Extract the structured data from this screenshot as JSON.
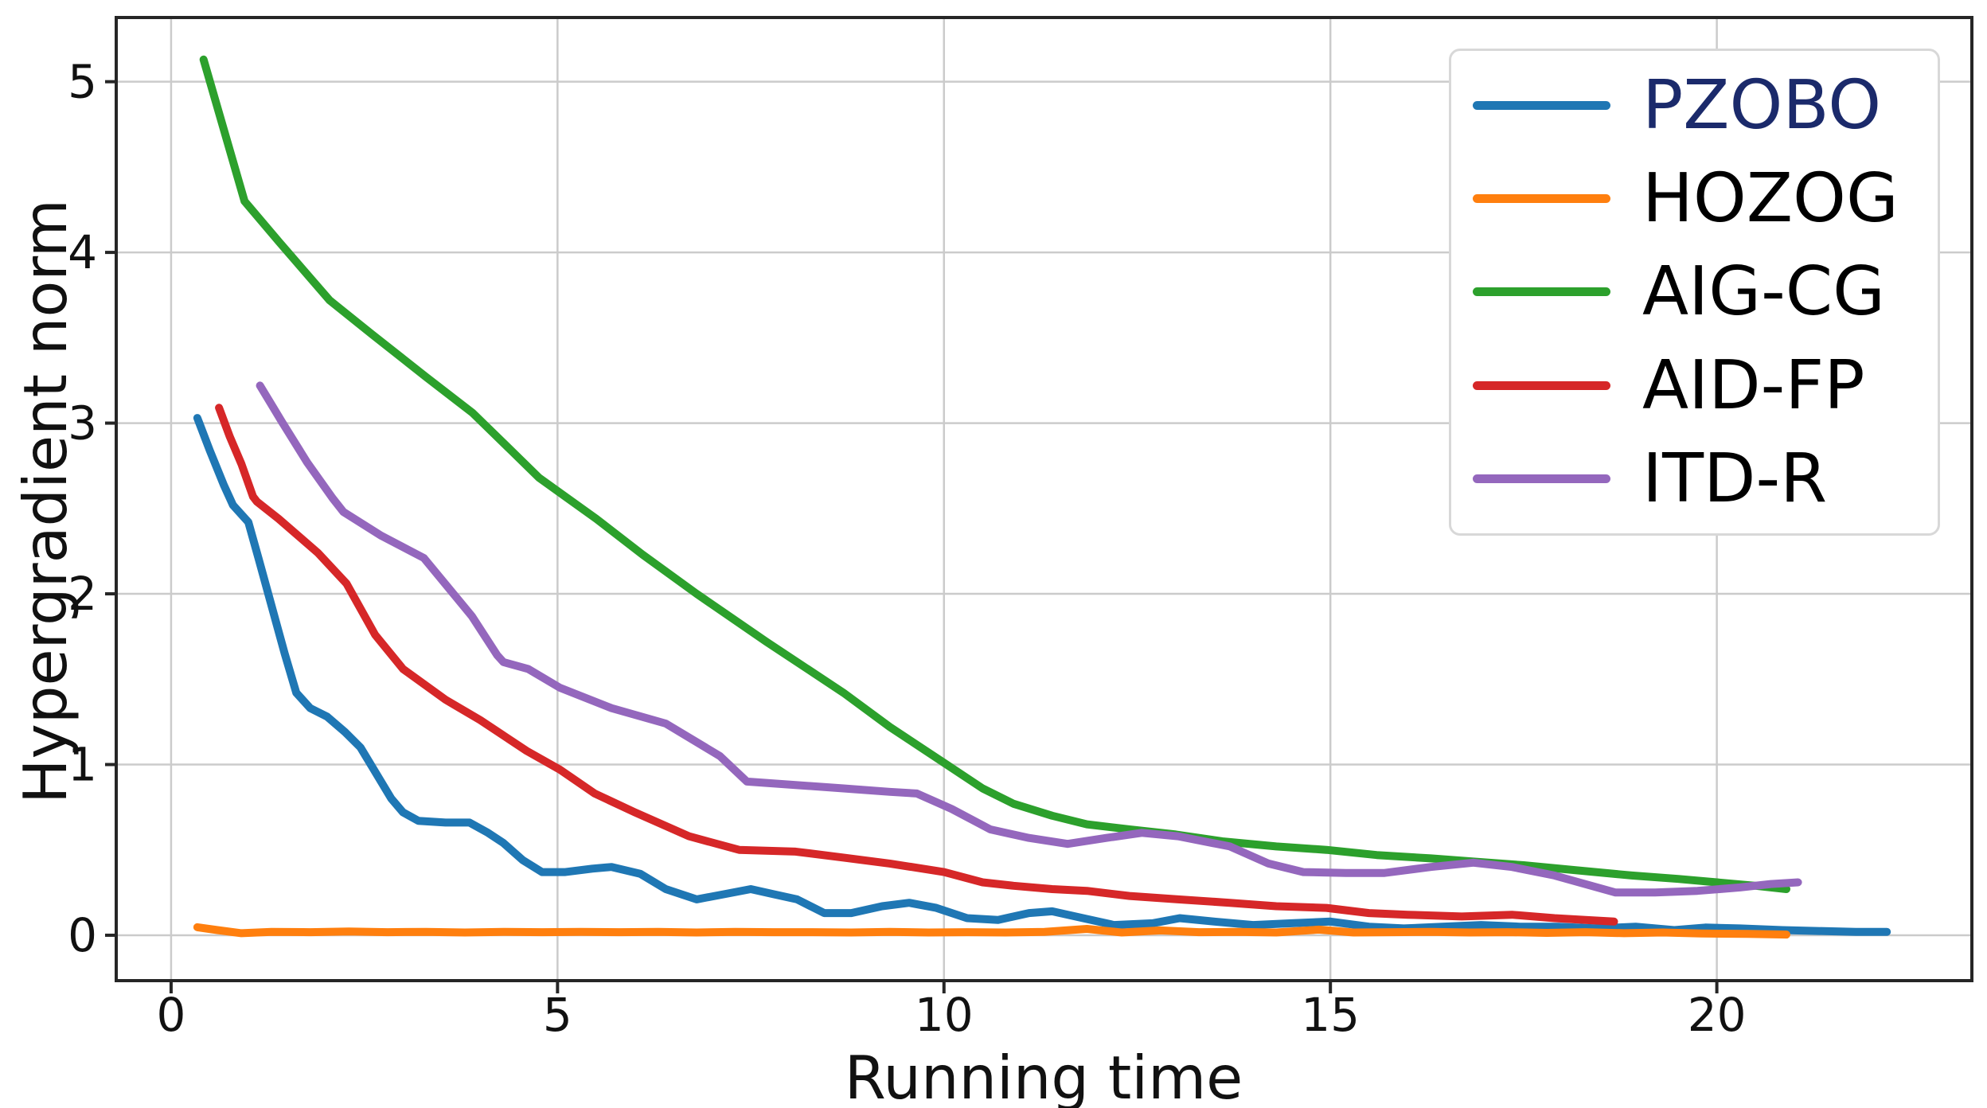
{
  "chart_data": {
    "type": "line",
    "title": "",
    "xlabel": "Running time",
    "ylabel": "Hypergradient norm",
    "xlim": [
      -0.71,
      23.3
    ],
    "ylim": [
      -0.266,
      5.376
    ],
    "x_ticks": [
      0,
      5,
      10,
      15,
      20
    ],
    "y_ticks": [
      0,
      1,
      2,
      3,
      4,
      5
    ],
    "grid": true,
    "legend_position": "upper right",
    "axis_color": "#262626",
    "gridline_color": "#cbcbcb",
    "tick_label_color": "#111111",
    "series": [
      {
        "name": "PZOBO",
        "color": "#1f77b4",
        "label_color": "#1b2a6b",
        "points": [
          [
            0.34,
            3.03
          ],
          [
            0.5,
            2.84
          ],
          [
            0.68,
            2.64
          ],
          [
            0.8,
            2.52
          ],
          [
            0.92,
            2.46
          ],
          [
            1.0,
            2.42
          ],
          [
            1.13,
            2.21
          ],
          [
            1.3,
            1.93
          ],
          [
            1.47,
            1.65
          ],
          [
            1.62,
            1.42
          ],
          [
            1.8,
            1.33
          ],
          [
            2.02,
            1.28
          ],
          [
            2.25,
            1.19
          ],
          [
            2.45,
            1.1
          ],
          [
            2.65,
            0.95
          ],
          [
            2.85,
            0.8
          ],
          [
            3.0,
            0.72
          ],
          [
            3.2,
            0.67
          ],
          [
            3.55,
            0.66
          ],
          [
            3.86,
            0.66
          ],
          [
            4.1,
            0.6
          ],
          [
            4.3,
            0.54
          ],
          [
            4.55,
            0.44
          ],
          [
            4.8,
            0.37
          ],
          [
            5.1,
            0.37
          ],
          [
            5.45,
            0.39
          ],
          [
            5.7,
            0.4
          ],
          [
            6.07,
            0.36
          ],
          [
            6.4,
            0.27
          ],
          [
            6.8,
            0.21
          ],
          [
            7.15,
            0.24
          ],
          [
            7.5,
            0.27
          ],
          [
            7.8,
            0.24
          ],
          [
            8.1,
            0.21
          ],
          [
            8.45,
            0.13
          ],
          [
            8.8,
            0.13
          ],
          [
            9.2,
            0.17
          ],
          [
            9.55,
            0.19
          ],
          [
            9.9,
            0.16
          ],
          [
            10.3,
            0.1
          ],
          [
            10.7,
            0.09
          ],
          [
            11.1,
            0.13
          ],
          [
            11.4,
            0.14
          ],
          [
            11.8,
            0.1
          ],
          [
            12.2,
            0.06
          ],
          [
            12.7,
            0.07
          ],
          [
            13.05,
            0.1
          ],
          [
            13.5,
            0.08
          ],
          [
            14.0,
            0.06
          ],
          [
            14.5,
            0.07
          ],
          [
            15.0,
            0.08
          ],
          [
            15.5,
            0.05
          ],
          [
            15.95,
            0.04
          ],
          [
            16.45,
            0.05
          ],
          [
            16.95,
            0.06
          ],
          [
            17.45,
            0.05
          ],
          [
            17.95,
            0.05
          ],
          [
            18.45,
            0.04
          ],
          [
            18.95,
            0.05
          ],
          [
            19.45,
            0.03
          ],
          [
            19.85,
            0.045
          ],
          [
            20.3,
            0.04
          ],
          [
            20.85,
            0.03
          ],
          [
            21.3,
            0.025
          ],
          [
            21.8,
            0.02
          ],
          [
            22.2,
            0.02
          ]
        ]
      },
      {
        "name": "HOZOG",
        "color": "#ff7f0e",
        "label_color": "#000000",
        "points": [
          [
            0.34,
            0.047
          ],
          [
            0.6,
            0.03
          ],
          [
            0.91,
            0.012
          ],
          [
            1.3,
            0.02
          ],
          [
            1.8,
            0.018
          ],
          [
            2.3,
            0.022
          ],
          [
            2.8,
            0.018
          ],
          [
            3.3,
            0.02
          ],
          [
            3.8,
            0.016
          ],
          [
            4.3,
            0.02
          ],
          [
            4.8,
            0.018
          ],
          [
            5.3,
            0.02
          ],
          [
            5.8,
            0.018
          ],
          [
            6.3,
            0.02
          ],
          [
            6.8,
            0.016
          ],
          [
            7.3,
            0.02
          ],
          [
            7.8,
            0.018
          ],
          [
            8.3,
            0.018
          ],
          [
            8.8,
            0.016
          ],
          [
            9.3,
            0.02
          ],
          [
            9.8,
            0.016
          ],
          [
            10.3,
            0.018
          ],
          [
            10.8,
            0.016
          ],
          [
            11.3,
            0.02
          ],
          [
            11.85,
            0.037
          ],
          [
            12.3,
            0.016
          ],
          [
            12.8,
            0.028
          ],
          [
            13.3,
            0.018
          ],
          [
            13.8,
            0.02
          ],
          [
            14.3,
            0.016
          ],
          [
            14.85,
            0.033
          ],
          [
            15.3,
            0.016
          ],
          [
            15.8,
            0.018
          ],
          [
            16.3,
            0.02
          ],
          [
            16.8,
            0.016
          ],
          [
            17.3,
            0.018
          ],
          [
            17.8,
            0.014
          ],
          [
            18.3,
            0.018
          ],
          [
            18.8,
            0.012
          ],
          [
            19.3,
            0.016
          ],
          [
            19.8,
            0.01
          ],
          [
            20.4,
            0.008
          ],
          [
            20.9,
            0.004
          ]
        ]
      },
      {
        "name": "AIG-CG",
        "color": "#2ca02c",
        "label_color": "#000000",
        "points": [
          [
            0.42,
            5.13
          ],
          [
            0.95,
            4.3
          ],
          [
            1.4,
            4.06
          ],
          [
            2.05,
            3.72
          ],
          [
            2.6,
            3.52
          ],
          [
            3.3,
            3.27
          ],
          [
            3.9,
            3.06
          ],
          [
            4.4,
            2.84
          ],
          [
            4.76,
            2.68
          ],
          [
            5.5,
            2.44
          ],
          [
            6.1,
            2.23
          ],
          [
            6.8,
            2.0
          ],
          [
            7.7,
            1.72
          ],
          [
            8.7,
            1.42
          ],
          [
            9.3,
            1.22
          ],
          [
            10.0,
            1.01
          ],
          [
            10.5,
            0.86
          ],
          [
            10.9,
            0.77
          ],
          [
            11.4,
            0.7
          ],
          [
            11.85,
            0.65
          ],
          [
            12.4,
            0.62
          ],
          [
            13.0,
            0.59
          ],
          [
            13.6,
            0.55
          ],
          [
            14.3,
            0.52
          ],
          [
            14.95,
            0.5
          ],
          [
            15.6,
            0.47
          ],
          [
            16.3,
            0.45
          ],
          [
            16.9,
            0.43
          ],
          [
            17.5,
            0.41
          ],
          [
            18.2,
            0.38
          ],
          [
            18.9,
            0.35
          ],
          [
            19.5,
            0.33
          ],
          [
            20.0,
            0.31
          ],
          [
            20.5,
            0.29
          ],
          [
            20.9,
            0.27
          ]
        ]
      },
      {
        "name": "AID-FP",
        "color": "#d62728",
        "label_color": "#000000",
        "points": [
          [
            0.62,
            3.09
          ],
          [
            0.76,
            2.92
          ],
          [
            0.91,
            2.76
          ],
          [
            1.06,
            2.57
          ],
          [
            1.11,
            2.54
          ],
          [
            1.39,
            2.44
          ],
          [
            1.9,
            2.24
          ],
          [
            2.27,
            2.06
          ],
          [
            2.64,
            1.76
          ],
          [
            3.0,
            1.56
          ],
          [
            3.55,
            1.38
          ],
          [
            4.0,
            1.26
          ],
          [
            4.6,
            1.08
          ],
          [
            5.03,
            0.97
          ],
          [
            5.48,
            0.83
          ],
          [
            6.0,
            0.72
          ],
          [
            6.7,
            0.58
          ],
          [
            7.35,
            0.5
          ],
          [
            8.08,
            0.49
          ],
          [
            8.7,
            0.455
          ],
          [
            9.3,
            0.42
          ],
          [
            10.0,
            0.37
          ],
          [
            10.5,
            0.31
          ],
          [
            10.9,
            0.29
          ],
          [
            11.4,
            0.27
          ],
          [
            11.85,
            0.26
          ],
          [
            12.4,
            0.23
          ],
          [
            13.03,
            0.21
          ],
          [
            13.7,
            0.19
          ],
          [
            14.3,
            0.17
          ],
          [
            14.95,
            0.16
          ],
          [
            15.5,
            0.13
          ],
          [
            16.0,
            0.12
          ],
          [
            16.7,
            0.11
          ],
          [
            17.35,
            0.12
          ],
          [
            17.9,
            0.1
          ],
          [
            18.3,
            0.09
          ],
          [
            18.67,
            0.08
          ]
        ]
      },
      {
        "name": "ITD-R",
        "color": "#9467bd",
        "label_color": "#000000",
        "points": [
          [
            1.15,
            3.22
          ],
          [
            1.43,
            3.01
          ],
          [
            1.76,
            2.77
          ],
          [
            2.09,
            2.56
          ],
          [
            2.23,
            2.48
          ],
          [
            2.72,
            2.34
          ],
          [
            3.27,
            2.21
          ],
          [
            3.89,
            1.87
          ],
          [
            4.22,
            1.64
          ],
          [
            4.3,
            1.6
          ],
          [
            4.62,
            1.56
          ],
          [
            5.03,
            1.45
          ],
          [
            5.7,
            1.33
          ],
          [
            6.4,
            1.24
          ],
          [
            7.1,
            1.05
          ],
          [
            7.45,
            0.9
          ],
          [
            8.08,
            0.88
          ],
          [
            8.7,
            0.86
          ],
          [
            9.3,
            0.84
          ],
          [
            9.65,
            0.83
          ],
          [
            10.1,
            0.74
          ],
          [
            10.6,
            0.62
          ],
          [
            11.1,
            0.57
          ],
          [
            11.6,
            0.535
          ],
          [
            12.1,
            0.57
          ],
          [
            12.56,
            0.6
          ],
          [
            13.03,
            0.58
          ],
          [
            13.7,
            0.52
          ],
          [
            14.2,
            0.42
          ],
          [
            14.65,
            0.37
          ],
          [
            15.2,
            0.365
          ],
          [
            15.7,
            0.365
          ],
          [
            16.3,
            0.4
          ],
          [
            16.85,
            0.425
          ],
          [
            17.35,
            0.4
          ],
          [
            17.9,
            0.35
          ],
          [
            18.69,
            0.25
          ],
          [
            19.2,
            0.25
          ],
          [
            19.75,
            0.26
          ],
          [
            20.3,
            0.28
          ],
          [
            20.7,
            0.3
          ],
          [
            21.05,
            0.31
          ]
        ]
      }
    ]
  }
}
